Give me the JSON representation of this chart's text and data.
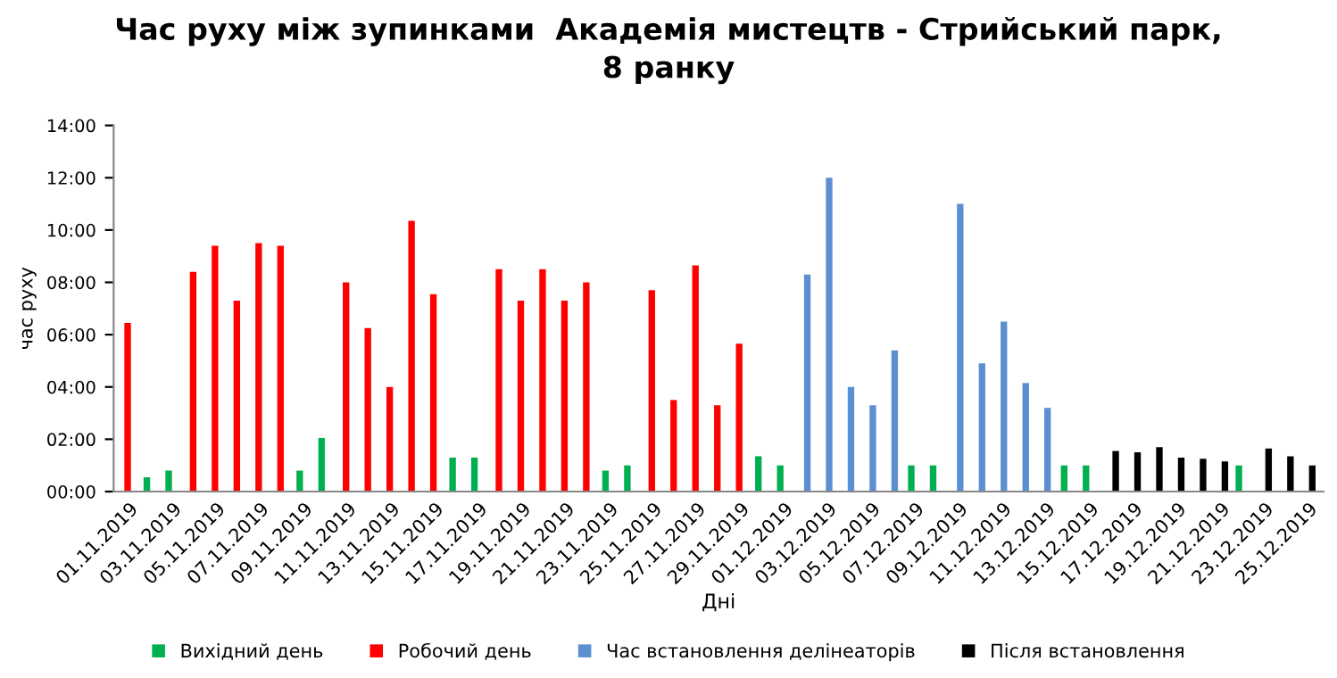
{
  "chart_data": {
    "type": "bar",
    "title": "Час руху між зупинками  Академія мистецтв - Стрийський парк,\n8 ранку",
    "xlabel": "Дні",
    "ylabel": "час руху",
    "categories": [
      "01.11.2019",
      null,
      "03.11.2019",
      null,
      "05.11.2019",
      null,
      "07.11.2019",
      null,
      "09.11.2019",
      null,
      "11.11.2019",
      null,
      "13.11.2019",
      null,
      "15.11.2019",
      null,
      "17.11.2019",
      null,
      "19.11.2019",
      null,
      "21.11.2019",
      null,
      "23.11.2019",
      null,
      "25.11.2019",
      null,
      "27.11.2019",
      null,
      "29.11.2019",
      null,
      "01.12.2019",
      null,
      "03.12.2019",
      null,
      "05.12.2019",
      null,
      "07.12.2019",
      null,
      "09.12.2019",
      null,
      "11.12.2019",
      null,
      "13.12.2019",
      null,
      "15.12.2019",
      null,
      "17.12.2019",
      null,
      "19.12.2019",
      null,
      "21.12.2019",
      null,
      "23.12.2019",
      null,
      "25.12.2019"
    ],
    "series": [
      {
        "name": "Вихідний день",
        "color": "#00b050",
        "values": [
          null,
          0.55,
          0.8,
          null,
          null,
          null,
          null,
          null,
          0.8,
          2.05,
          null,
          null,
          null,
          null,
          null,
          1.3,
          1.3,
          null,
          null,
          null,
          null,
          null,
          0.8,
          1.0,
          null,
          null,
          null,
          null,
          null,
          1.35,
          1.0,
          null,
          null,
          null,
          null,
          null,
          1.0,
          1.0,
          null,
          null,
          null,
          null,
          null,
          1.0,
          1.0,
          null,
          null,
          null,
          null,
          null,
          null,
          1.0,
          null,
          null,
          null
        ]
      },
      {
        "name": "Робочий день",
        "color": "#ff0000",
        "values": [
          6.45,
          null,
          null,
          8.4,
          9.4,
          7.3,
          9.5,
          9.4,
          null,
          null,
          8.0,
          6.25,
          4.0,
          10.35,
          7.55,
          null,
          null,
          8.5,
          7.3,
          8.5,
          7.3,
          8.0,
          null,
          null,
          7.7,
          3.5,
          8.65,
          3.3,
          5.65,
          null,
          null,
          null,
          null,
          null,
          null,
          null,
          null,
          null,
          null,
          null,
          null,
          null,
          null,
          null,
          null,
          null,
          null,
          null,
          null,
          null,
          null,
          null,
          null,
          null,
          null
        ]
      },
      {
        "name": "Час встановлення делінеаторів",
        "color": "#5b8fd0",
        "values": [
          null,
          null,
          null,
          null,
          null,
          null,
          null,
          null,
          null,
          null,
          null,
          null,
          null,
          null,
          null,
          null,
          null,
          null,
          null,
          null,
          null,
          null,
          null,
          null,
          null,
          null,
          null,
          null,
          null,
          null,
          null,
          8.3,
          12.0,
          4.0,
          3.3,
          5.4,
          null,
          null,
          11.0,
          4.9,
          6.5,
          4.15,
          3.2,
          null,
          null,
          null,
          null,
          null,
          null,
          null,
          null,
          null,
          null,
          null,
          null
        ]
      },
      {
        "name": "Після встановлення",
        "color": "#000000",
        "values": [
          null,
          null,
          null,
          null,
          null,
          null,
          null,
          null,
          null,
          null,
          null,
          null,
          null,
          null,
          null,
          null,
          null,
          null,
          null,
          null,
          null,
          null,
          null,
          null,
          null,
          null,
          null,
          null,
          null,
          null,
          null,
          null,
          null,
          null,
          null,
          null,
          null,
          null,
          null,
          null,
          null,
          null,
          null,
          null,
          null,
          1.55,
          1.5,
          1.7,
          1.3,
          1.25,
          1.15,
          null,
          1.65,
          1.35,
          1.0
        ]
      }
    ],
    "ylim": [
      0,
      14
    ],
    "yticks": [
      {
        "value": 0,
        "label": "00:00"
      },
      {
        "value": 2,
        "label": "02:00"
      },
      {
        "value": 4,
        "label": "04:00"
      },
      {
        "value": 6,
        "label": "06:00"
      },
      {
        "value": 8,
        "label": "08:00"
      },
      {
        "value": 10,
        "label": "10:00"
      },
      {
        "value": 12,
        "label": "12:00"
      },
      {
        "value": 14,
        "label": "14:00"
      }
    ],
    "grid": false,
    "legend": "bottom"
  }
}
